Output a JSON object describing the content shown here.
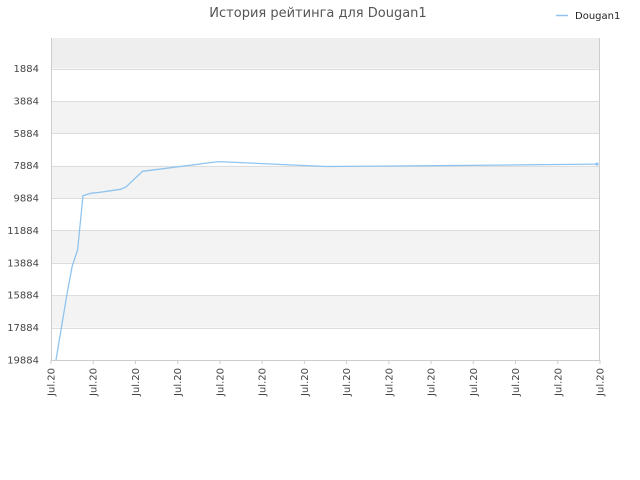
{
  "chart_data": {
    "type": "line",
    "title": "История рейтинга для Dougan1",
    "xlabel": "",
    "ylabel": "",
    "y_inverted": true,
    "ylim": [
      19884,
      0
    ],
    "y_ticks": [
      1884,
      3884,
      5884,
      7884,
      9884,
      11884,
      13884,
      15884,
      17884,
      19884
    ],
    "x_ticks": [
      "Jul.20",
      "Jul.20",
      "Jul.20",
      "Jul.20",
      "Jul.20",
      "Jul.20",
      "Jul.20",
      "Jul.20",
      "Jul.20",
      "Jul.20",
      "Jul.20",
      "Jul.20",
      "Jul.20",
      "Jul.20"
    ],
    "grid": true,
    "legend_position": "top-right",
    "colors": {
      "line": "#90c4ee",
      "band": "#f3f3f3",
      "top_band": "#eeeeee",
      "grid": "#dddddd",
      "axis": "#cccccc"
    },
    "series": [
      {
        "name": "Dougan1",
        "x": [
          0.0,
          0.01,
          0.02,
          0.03,
          0.04,
          0.05,
          0.06,
          0.065,
          0.08,
          0.1,
          0.12,
          0.13,
          0.16,
          0.3,
          0.5,
          0.7,
          0.85,
          1.0
        ],
        "values": [
          19884,
          17884,
          15884,
          14084,
          13084,
          9734,
          9634,
          9584,
          9534,
          9434,
          9334,
          9184,
          8234,
          7634,
          7934,
          7884,
          7834,
          7784
        ]
      }
    ]
  }
}
